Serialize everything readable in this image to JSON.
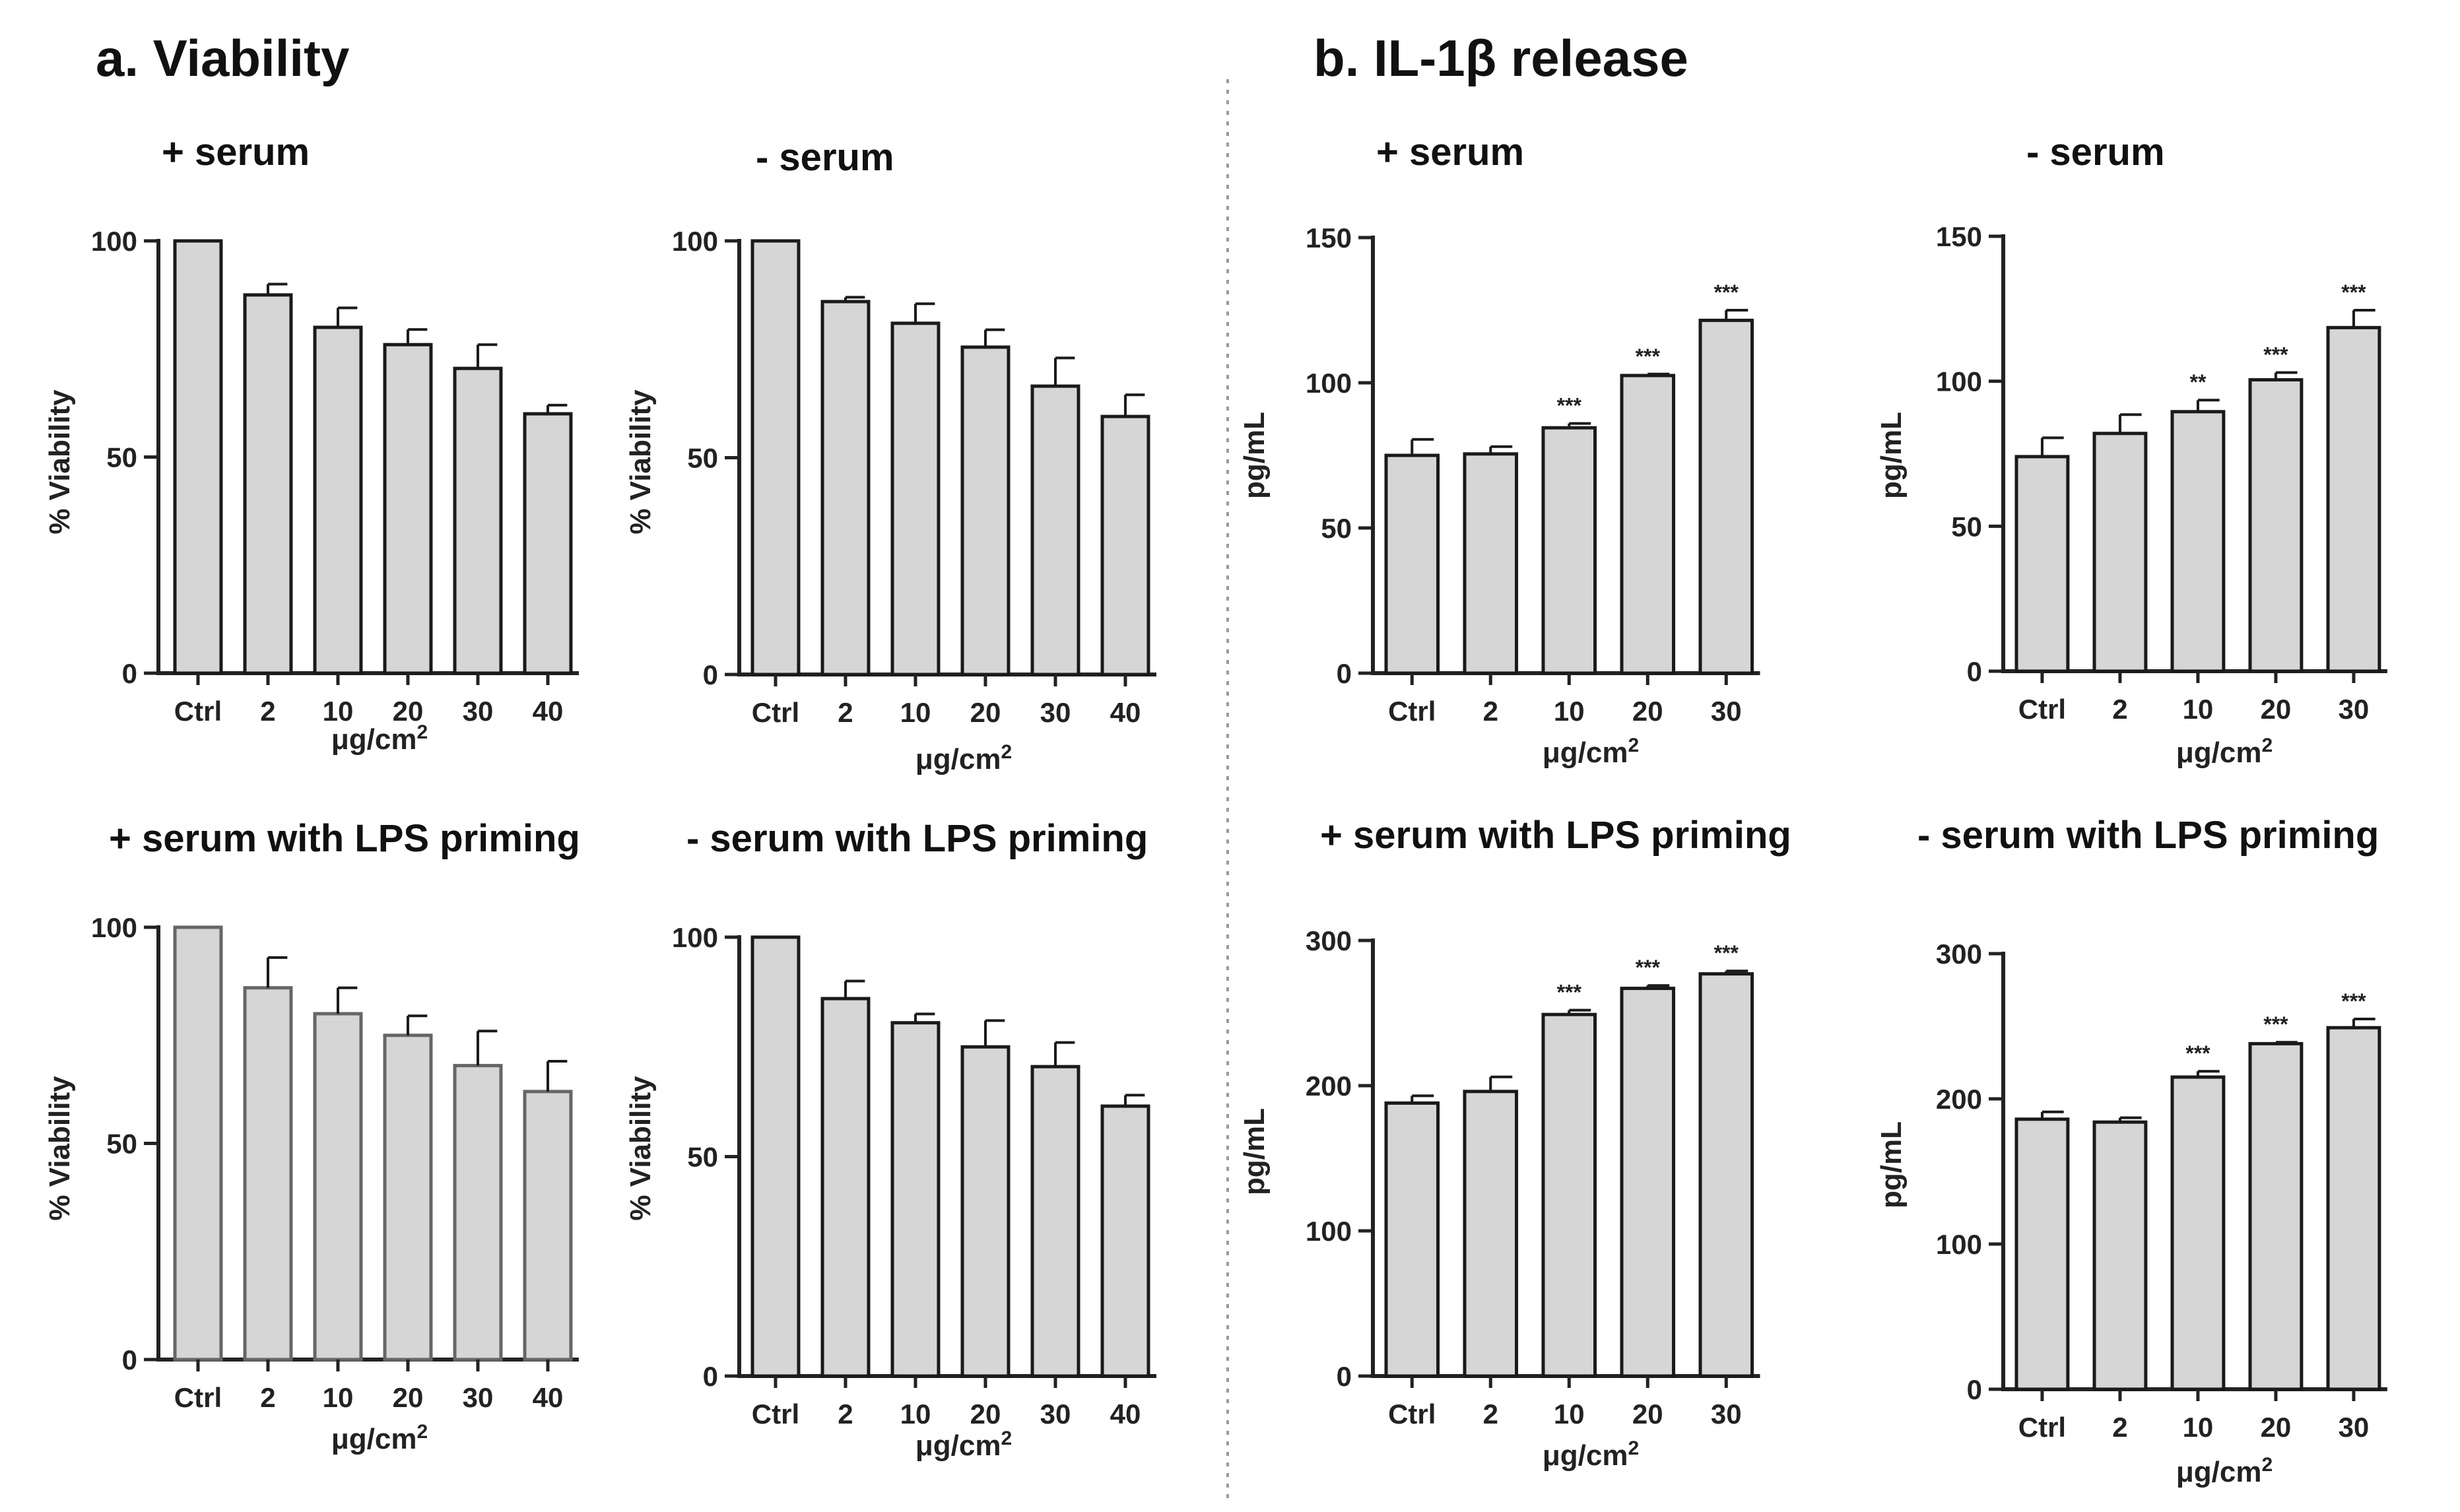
{
  "figure": {
    "section_a_title": "a. Viability",
    "section_b_title": "b. IL-1β release",
    "colors": {
      "bar_fill": "#d6d6d6",
      "bar_stroke": "#1a1a1a",
      "text": "#222222"
    }
  },
  "chart_data": [
    {
      "id": "viability-plus-serum",
      "type": "bar",
      "title": "+ serum",
      "xlabel": "μg/cm²",
      "ylabel": "% Viability",
      "categories": [
        "Ctrl",
        "2",
        "10",
        "20",
        "30",
        "40"
      ],
      "values": [
        100,
        87.5,
        80,
        76,
        70.5,
        60
      ],
      "errors": [
        0,
        2.5,
        4.5,
        3.5,
        5.5,
        2
      ],
      "significance": [
        "",
        "",
        "",
        "",
        "",
        ""
      ],
      "ylim": [
        0,
        100
      ],
      "yticks": [
        0,
        50,
        100
      ]
    },
    {
      "id": "viability-minus-serum",
      "type": "bar",
      "title": "- serum",
      "xlabel": "μg/cm²",
      "ylabel": "% Viability",
      "categories": [
        "Ctrl",
        "2",
        "10",
        "20",
        "30",
        "40"
      ],
      "values": [
        100,
        86,
        81,
        75.5,
        66.5,
        59.5
      ],
      "errors": [
        0,
        1,
        4.5,
        4,
        6.5,
        5
      ],
      "significance": [
        "",
        "",
        "",
        "",
        "",
        ""
      ],
      "ylim": [
        0,
        100
      ],
      "yticks": [
        0,
        50,
        100
      ]
    },
    {
      "id": "il1b-plus-serum",
      "type": "bar",
      "title": "+ serum",
      "xlabel": "μg/cm²",
      "ylabel": "pg/mL",
      "categories": [
        "Ctrl",
        "2",
        "10",
        "20",
        "30"
      ],
      "values": [
        75,
        75.5,
        84.5,
        102.5,
        121.5
      ],
      "errors": [
        5.5,
        2.5,
        1.5,
        0.5,
        3.5
      ],
      "significance": [
        "",
        "",
        "***",
        "***",
        "***"
      ],
      "ylim": [
        0,
        150
      ],
      "yticks": [
        0,
        50,
        100,
        150
      ]
    },
    {
      "id": "il1b-minus-serum",
      "type": "bar",
      "title": "- serum",
      "xlabel": "μg/cm²",
      "ylabel": "pg/mL",
      "categories": [
        "Ctrl",
        "2",
        "10",
        "20",
        "30"
      ],
      "values": [
        74,
        82,
        89.5,
        100.5,
        118.5
      ],
      "errors": [
        6.5,
        6.5,
        4,
        2.5,
        6
      ],
      "significance": [
        "",
        "",
        "**",
        "***",
        "***"
      ],
      "ylim": [
        0,
        150
      ],
      "yticks": [
        0,
        50,
        100,
        150
      ]
    },
    {
      "id": "viability-plus-serum-lps",
      "type": "bar",
      "title": "+ serum with LPS priming",
      "xlabel": "μg/cm²",
      "ylabel": "% Viability",
      "categories": [
        "Ctrl",
        "2",
        "10",
        "20",
        "30",
        "40"
      ],
      "values": [
        100,
        86,
        80,
        75,
        68,
        62
      ],
      "errors": [
        0,
        7,
        6,
        4.5,
        8,
        7
      ],
      "significance": [
        "",
        "",
        "",
        "",
        "",
        ""
      ],
      "ylim": [
        0,
        100
      ],
      "yticks": [
        0,
        50,
        100
      ]
    },
    {
      "id": "viability-minus-serum-lps",
      "type": "bar",
      "title": "- serum with LPS priming",
      "xlabel": "μg/cm²",
      "ylabel": "% Viability",
      "categories": [
        "Ctrl",
        "2",
        "10",
        "20",
        "30",
        "40"
      ],
      "values": [
        100,
        86,
        80.5,
        75,
        70.5,
        61.5
      ],
      "errors": [
        0,
        4,
        2,
        6,
        5.5,
        2.5
      ],
      "significance": [
        "",
        "",
        "",
        "",
        "",
        ""
      ],
      "ylim": [
        0,
        100
      ],
      "yticks": [
        0,
        50,
        100
      ]
    },
    {
      "id": "il1b-plus-serum-lps",
      "type": "bar",
      "title": "+ serum with LPS priming",
      "xlabel": "μg/cm²",
      "ylabel": "pg/mL",
      "categories": [
        "Ctrl",
        "2",
        "10",
        "20",
        "30"
      ],
      "values": [
        188,
        196,
        249,
        267,
        277
      ],
      "errors": [
        5,
        10,
        3,
        2,
        2
      ],
      "significance": [
        "",
        "",
        "***",
        "***",
        "***"
      ],
      "ylim": [
        0,
        300
      ],
      "yticks": [
        0,
        100,
        200,
        300
      ]
    },
    {
      "id": "il1b-minus-serum-lps",
      "type": "bar",
      "title": "- serum with LPS priming",
      "xlabel": "μg/cm²",
      "ylabel": "pg/mL",
      "categories": [
        "Ctrl",
        "2",
        "10",
        "20",
        "30"
      ],
      "values": [
        186,
        184,
        215,
        238,
        249
      ],
      "errors": [
        5,
        3,
        4,
        1,
        6
      ],
      "significance": [
        "",
        "",
        "***",
        "***",
        "***"
      ],
      "ylim": [
        0,
        300
      ],
      "yticks": [
        0,
        100,
        200,
        300
      ]
    }
  ]
}
